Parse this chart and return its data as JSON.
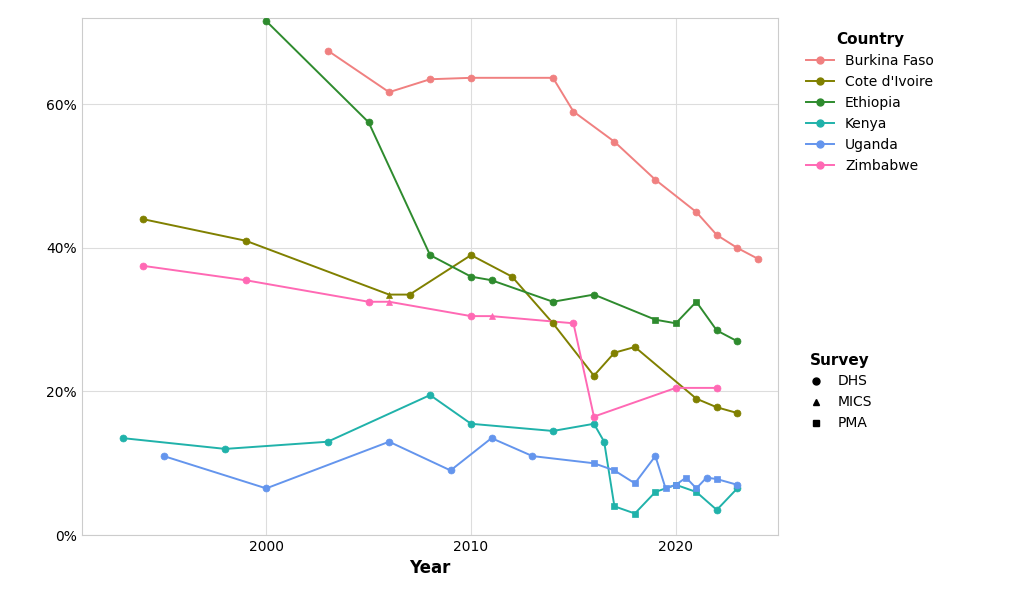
{
  "title": "",
  "xlabel": "Year",
  "ylabel": "",
  "background_color": "#ffffff",
  "plot_bg_color": "#ffffff",
  "grid_color": "#dddddd",
  "countries": {
    "Burkina Faso": {
      "color": "#f08080",
      "data": [
        {
          "year": 2003,
          "value": 0.675,
          "survey": "DHS"
        },
        {
          "year": 2006,
          "value": 0.617,
          "survey": "DHS"
        },
        {
          "year": 2008,
          "value": 0.635,
          "survey": "DHS"
        },
        {
          "year": 2010,
          "value": 0.637,
          "survey": "DHS"
        },
        {
          "year": 2014,
          "value": 0.637,
          "survey": "DHS"
        },
        {
          "year": 2015,
          "value": 0.59,
          "survey": "DHS"
        },
        {
          "year": 2017,
          "value": 0.548,
          "survey": "DHS"
        },
        {
          "year": 2019,
          "value": 0.495,
          "survey": "DHS"
        },
        {
          "year": 2021,
          "value": 0.45,
          "survey": "DHS"
        },
        {
          "year": 2022,
          "value": 0.418,
          "survey": "DHS"
        },
        {
          "year": 2023,
          "value": 0.4,
          "survey": "DHS"
        },
        {
          "year": 2024,
          "value": 0.385,
          "survey": "DHS"
        }
      ]
    },
    "Cote d'Ivoire": {
      "color": "#808000",
      "data": [
        {
          "year": 1994,
          "value": 0.44,
          "survey": "DHS"
        },
        {
          "year": 1999,
          "value": 0.41,
          "survey": "DHS"
        },
        {
          "year": 2006,
          "value": 0.335,
          "survey": "MICS"
        },
        {
          "year": 2007,
          "value": 0.335,
          "survey": "DHS"
        },
        {
          "year": 2010,
          "value": 0.39,
          "survey": "DHS"
        },
        {
          "year": 2012,
          "value": 0.36,
          "survey": "DHS"
        },
        {
          "year": 2014,
          "value": 0.295,
          "survey": "DHS"
        },
        {
          "year": 2016,
          "value": 0.222,
          "survey": "DHS"
        },
        {
          "year": 2017,
          "value": 0.254,
          "survey": "DHS"
        },
        {
          "year": 2018,
          "value": 0.262,
          "survey": "DHS"
        },
        {
          "year": 2021,
          "value": 0.19,
          "survey": "DHS"
        },
        {
          "year": 2022,
          "value": 0.178,
          "survey": "DHS"
        },
        {
          "year": 2023,
          "value": 0.17,
          "survey": "DHS"
        }
      ]
    },
    "Ethiopia": {
      "color": "#2e8b2e",
      "data": [
        {
          "year": 2000,
          "value": 0.716,
          "survey": "DHS"
        },
        {
          "year": 2005,
          "value": 0.575,
          "survey": "DHS"
        },
        {
          "year": 2008,
          "value": 0.39,
          "survey": "DHS"
        },
        {
          "year": 2010,
          "value": 0.36,
          "survey": "DHS"
        },
        {
          "year": 2011,
          "value": 0.355,
          "survey": "DHS"
        },
        {
          "year": 2014,
          "value": 0.325,
          "survey": "DHS"
        },
        {
          "year": 2016,
          "value": 0.335,
          "survey": "DHS"
        },
        {
          "year": 2019,
          "value": 0.3,
          "survey": "PMA"
        },
        {
          "year": 2020,
          "value": 0.295,
          "survey": "PMA"
        },
        {
          "year": 2021,
          "value": 0.325,
          "survey": "PMA"
        },
        {
          "year": 2022,
          "value": 0.285,
          "survey": "DHS"
        },
        {
          "year": 2023,
          "value": 0.27,
          "survey": "DHS"
        }
      ]
    },
    "Kenya": {
      "color": "#20b2aa",
      "data": [
        {
          "year": 1993,
          "value": 0.135,
          "survey": "DHS"
        },
        {
          "year": 1998,
          "value": 0.12,
          "survey": "DHS"
        },
        {
          "year": 2003,
          "value": 0.13,
          "survey": "DHS"
        },
        {
          "year": 2008,
          "value": 0.195,
          "survey": "DHS"
        },
        {
          "year": 2010,
          "value": 0.155,
          "survey": "DHS"
        },
        {
          "year": 2014,
          "value": 0.145,
          "survey": "DHS"
        },
        {
          "year": 2016,
          "value": 0.155,
          "survey": "DHS"
        },
        {
          "year": 2016.5,
          "value": 0.13,
          "survey": "DHS"
        },
        {
          "year": 2017,
          "value": 0.04,
          "survey": "PMA"
        },
        {
          "year": 2018,
          "value": 0.03,
          "survey": "PMA"
        },
        {
          "year": 2019,
          "value": 0.06,
          "survey": "PMA"
        },
        {
          "year": 2020,
          "value": 0.07,
          "survey": "PMA"
        },
        {
          "year": 2021,
          "value": 0.06,
          "survey": "PMA"
        },
        {
          "year": 2022,
          "value": 0.035,
          "survey": "DHS"
        },
        {
          "year": 2023,
          "value": 0.065,
          "survey": "DHS"
        }
      ]
    },
    "Uganda": {
      "color": "#6495ed",
      "data": [
        {
          "year": 1995,
          "value": 0.11,
          "survey": "DHS"
        },
        {
          "year": 2000,
          "value": 0.065,
          "survey": "DHS"
        },
        {
          "year": 2006,
          "value": 0.13,
          "survey": "DHS"
        },
        {
          "year": 2009,
          "value": 0.09,
          "survey": "DHS"
        },
        {
          "year": 2011,
          "value": 0.135,
          "survey": "DHS"
        },
        {
          "year": 2013,
          "value": 0.11,
          "survey": "DHS"
        },
        {
          "year": 2016,
          "value": 0.1,
          "survey": "PMA"
        },
        {
          "year": 2017,
          "value": 0.09,
          "survey": "PMA"
        },
        {
          "year": 2018,
          "value": 0.072,
          "survey": "PMA"
        },
        {
          "year": 2019,
          "value": 0.11,
          "survey": "DHS"
        },
        {
          "year": 2019.5,
          "value": 0.065,
          "survey": "PMA"
        },
        {
          "year": 2020,
          "value": 0.07,
          "survey": "PMA"
        },
        {
          "year": 2020.5,
          "value": 0.08,
          "survey": "PMA"
        },
        {
          "year": 2021,
          "value": 0.065,
          "survey": "PMA"
        },
        {
          "year": 2021.5,
          "value": 0.08,
          "survey": "DHS"
        },
        {
          "year": 2022,
          "value": 0.078,
          "survey": "PMA"
        },
        {
          "year": 2023,
          "value": 0.07,
          "survey": "DHS"
        }
      ]
    },
    "Zimbabwe": {
      "color": "#ff69b4",
      "data": [
        {
          "year": 1994,
          "value": 0.375,
          "survey": "DHS"
        },
        {
          "year": 1999,
          "value": 0.355,
          "survey": "DHS"
        },
        {
          "year": 2005,
          "value": 0.325,
          "survey": "DHS"
        },
        {
          "year": 2006,
          "value": 0.325,
          "survey": "MICS"
        },
        {
          "year": 2010,
          "value": 0.305,
          "survey": "DHS"
        },
        {
          "year": 2011,
          "value": 0.305,
          "survey": "MICS"
        },
        {
          "year": 2015,
          "value": 0.295,
          "survey": "DHS"
        },
        {
          "year": 2016,
          "value": 0.165,
          "survey": "DHS"
        },
        {
          "year": 2020,
          "value": 0.205,
          "survey": "DHS"
        },
        {
          "year": 2022,
          "value": 0.205,
          "survey": "DHS"
        }
      ]
    }
  },
  "survey_markers": {
    "DHS": "o",
    "MICS": "^",
    "PMA": "s"
  },
  "ylim": [
    0.0,
    0.72
  ],
  "xlim": [
    1991,
    2025
  ],
  "yticks": [
    0.0,
    0.2,
    0.4,
    0.6
  ],
  "ytick_labels": [
    "0%",
    "20%",
    "40%",
    "60%"
  ],
  "xticks": [
    2000,
    2010,
    2020
  ],
  "legend_country_title": "Country",
  "legend_survey_title": "Survey",
  "markersize": 5,
  "linewidth": 1.4,
  "fontsize_ticks": 10,
  "fontsize_label": 12,
  "fontsize_legend": 10,
  "fontsize_legend_title": 11
}
